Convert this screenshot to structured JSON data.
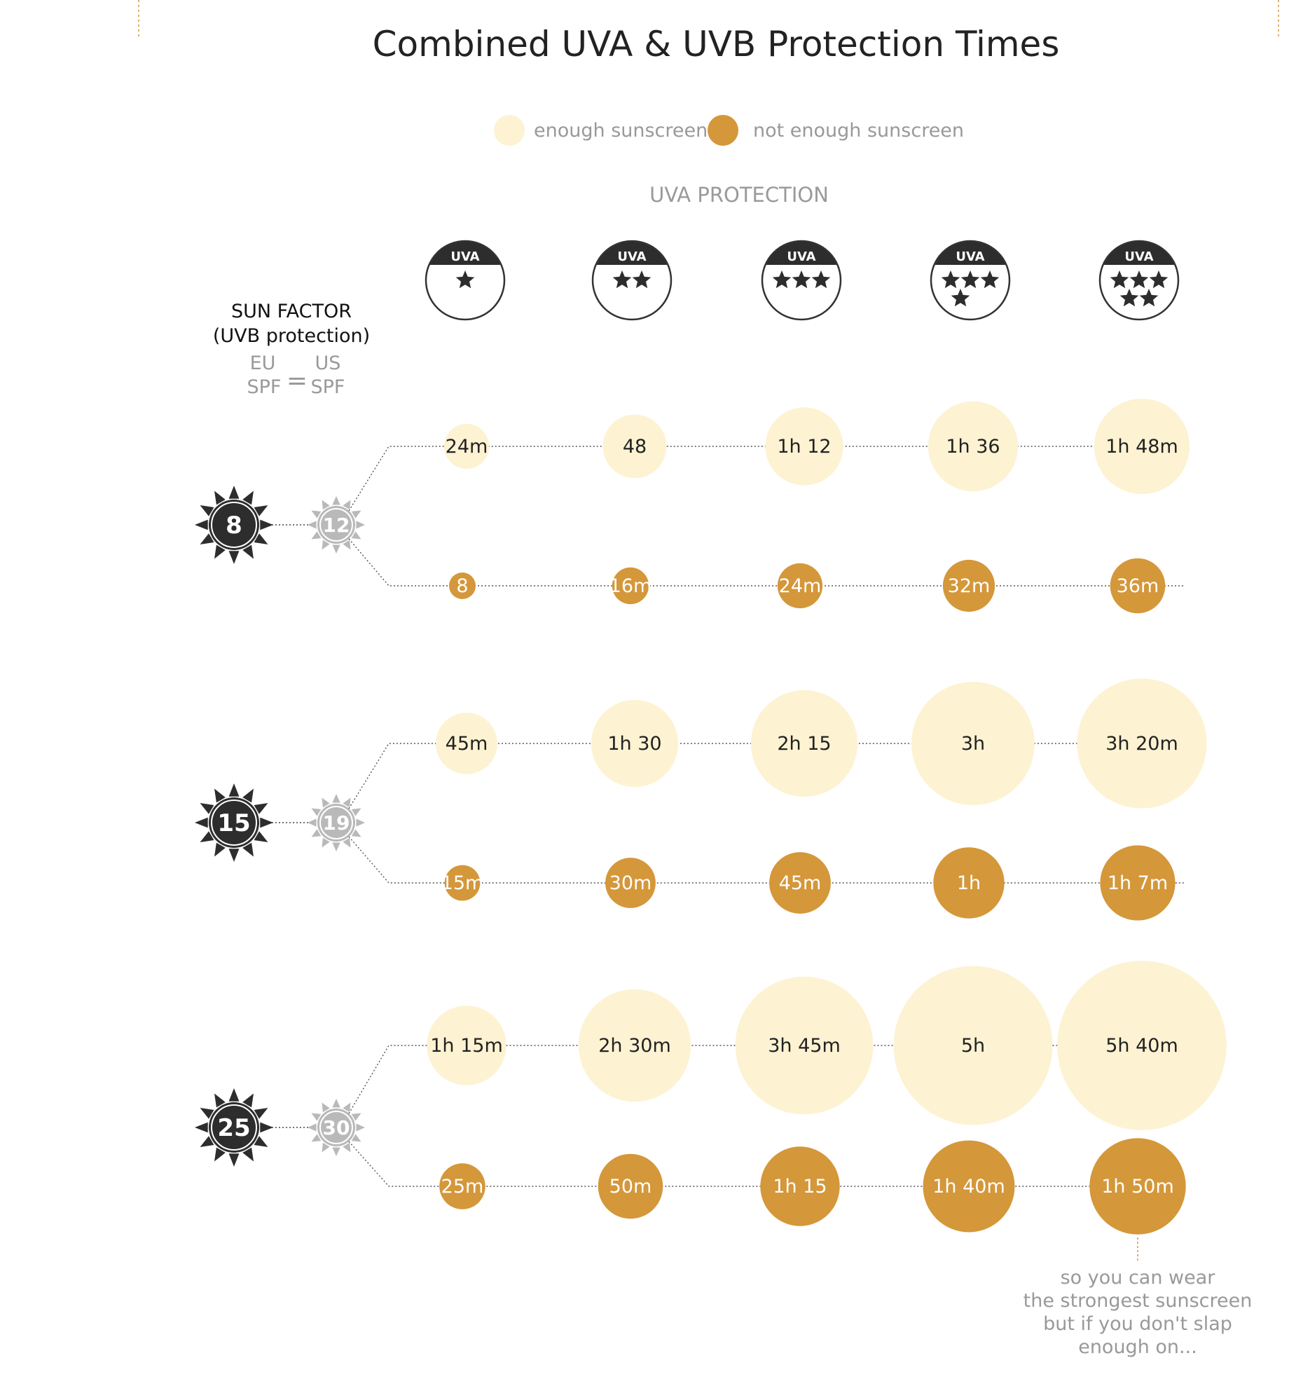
{
  "title": "Combined UVA & UVB Protection Times",
  "legend": {
    "enough": {
      "label": "enough sunscreen",
      "color": "#fdf2d2"
    },
    "not_enough": {
      "label": "not enough sunscreen",
      "color": "#d4973a"
    }
  },
  "uva_header": "UVA PROTECTION",
  "uva_badges": [
    {
      "label": "UVA",
      "stars": 1
    },
    {
      "label": "UVA",
      "stars": 2
    },
    {
      "label": "UVA",
      "stars": 3
    },
    {
      "label": "UVA",
      "stars": 4
    },
    {
      "label": "UVA",
      "stars": 5
    }
  ],
  "sun_factor": {
    "title": "SUN FACTOR",
    "subtitle": "(UVB protection)",
    "eu_line1": "EU",
    "eu_line2": "SPF",
    "equals": "=",
    "us_line1": "US",
    "us_line2": "SPF"
  },
  "note_lines": [
    "so you can wear",
    "the strongest sunscreen",
    "but if you don't slap",
    "enough on..."
  ],
  "colors": {
    "dark_sun": "#2d2d2d",
    "light_sun": "#b9b9b9",
    "enough": "#fdf2d2",
    "not_enough": "#d4973a"
  },
  "chart_data": {
    "type": "bubble",
    "x_categories": [
      "1 star",
      "2 stars",
      "3 stars",
      "4 stars",
      "5 stars"
    ],
    "groups": [
      {
        "eu_spf": "8",
        "us_spf": "12",
        "enough": {
          "labels": [
            "24m",
            "48",
            "1h 12",
            "1h 36",
            "1h 48m"
          ],
          "minutes": [
            24,
            48,
            72,
            96,
            108
          ]
        },
        "not_enough": {
          "labels": [
            "8",
            "16m",
            "24m",
            "32m",
            "36m"
          ],
          "minutes": [
            8,
            16,
            24,
            32,
            36
          ]
        }
      },
      {
        "eu_spf": "15",
        "us_spf": "19",
        "enough": {
          "labels": [
            "45m",
            "1h 30",
            "2h 15",
            "3h",
            "3h 20m"
          ],
          "minutes": [
            45,
            90,
            135,
            180,
            200
          ]
        },
        "not_enough": {
          "labels": [
            "15m",
            "30m",
            "45m",
            "1h",
            "1h 7m"
          ],
          "minutes": [
            15,
            30,
            45,
            60,
            67
          ]
        }
      },
      {
        "eu_spf": "25",
        "us_spf": "30",
        "enough": {
          "labels": [
            "1h 15m",
            "2h 30m",
            "3h 45m",
            "5h",
            "5h 40m"
          ],
          "minutes": [
            75,
            150,
            225,
            300,
            340
          ]
        },
        "not_enough": {
          "labels": [
            "25m",
            "50m",
            "1h 15",
            "1h 40m",
            "1h 50m"
          ],
          "minutes": [
            25,
            50,
            75,
            100,
            110
          ]
        }
      }
    ]
  }
}
